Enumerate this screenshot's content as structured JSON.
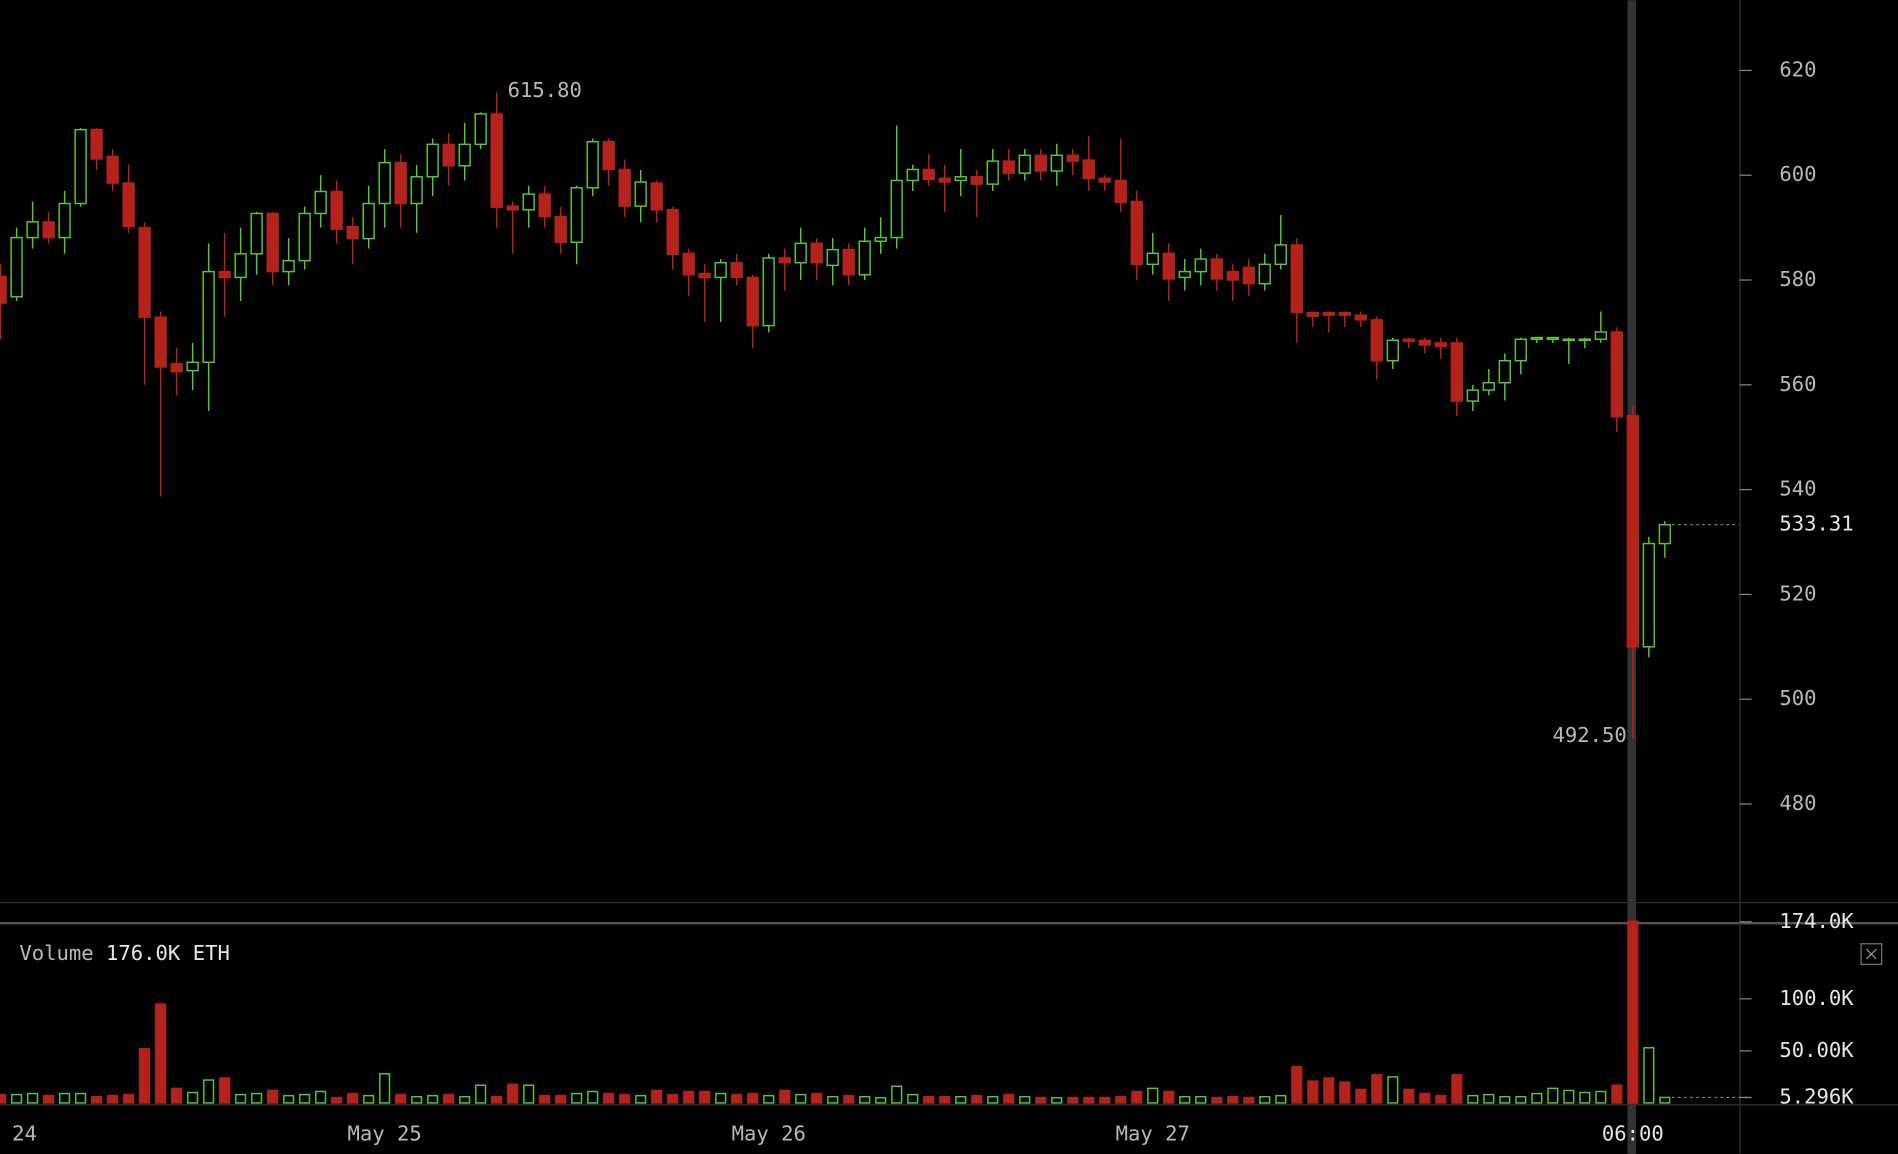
{
  "chart_data": {
    "type": "candlestick",
    "categories": [
      "24",
      null,
      null,
      null,
      null,
      null,
      null,
      null,
      null,
      null,
      null,
      null,
      null,
      null,
      null,
      null,
      null,
      null,
      null,
      null,
      null,
      null,
      null,
      null,
      "May 25",
      null,
      null,
      null,
      null,
      null,
      null,
      null,
      null,
      null,
      null,
      null,
      null,
      null,
      null,
      null,
      null,
      null,
      null,
      null,
      null,
      null,
      null,
      null,
      "May 26",
      null,
      null,
      null,
      null,
      null,
      null,
      null,
      null,
      null,
      null,
      null,
      null,
      null,
      null,
      null,
      null,
      null,
      null,
      null,
      null,
      null,
      null,
      null,
      "May 27",
      null,
      null,
      null,
      null,
      null,
      null,
      null,
      null,
      null,
      null,
      null,
      null,
      null,
      null,
      null,
      null,
      null,
      null,
      null,
      null,
      null,
      null,
      null,
      null,
      null,
      null,
      null,
      null,
      null,
      "06:00",
      null,
      null
    ],
    "open": [
      580.7,
      576.8,
      588.1,
      591.1,
      588.1,
      594.6,
      608.7,
      603.6,
      598.5,
      590,
      572.9,
      564,
      562.7,
      564.3,
      581.6,
      580.5,
      585,
      592.7,
      581.6,
      583.7,
      592.7,
      596.9,
      590.2,
      587.9,
      594.6,
      602.4,
      594.6,
      599.7,
      605.9,
      601.8,
      605.9,
      611.7,
      594.1,
      593.4,
      596.4,
      592.1,
      587.2,
      597.6,
      606.4,
      601.1,
      594.1,
      598.5,
      593.4,
      585.1,
      581.2,
      580.5,
      583.3,
      580.5,
      571.3,
      584.2,
      583.3,
      587,
      582.8,
      585.8,
      581,
      587.4,
      588.1,
      599,
      601.1,
      599.4,
      599,
      599.7,
      598.3,
      602.7,
      600.4,
      603.8,
      600.8,
      603.8,
      602.9,
      599.4,
      599,
      595,
      583,
      585.1,
      580.5,
      581.6,
      584,
      581.6,
      582.4,
      579.3,
      583,
      586.7,
      573.8,
      573.8,
      573.8,
      573.3,
      572.4,
      564.6,
      568.7,
      568.5,
      568,
      568,
      556.9,
      559,
      560.4,
      564.6,
      568.7,
      568.7,
      568.5,
      568.5,
      568.7,
      570.1,
      554.1,
      510,
      529.7
    ],
    "high": [
      583,
      590,
      595,
      593,
      597,
      609,
      609,
      605,
      602,
      591,
      574,
      567,
      568,
      587,
      589,
      590,
      593,
      593,
      588,
      594,
      600,
      599,
      592,
      598,
      605,
      604,
      602,
      607,
      608,
      610,
      612,
      615.8,
      595,
      598,
      598,
      594,
      598,
      607,
      607,
      603,
      601,
      599,
      594,
      586,
      583,
      584,
      585,
      581,
      585,
      586,
      590,
      588,
      588,
      587,
      590,
      592,
      609.5,
      602,
      604,
      602,
      605,
      601,
      605,
      605,
      605,
      605,
      606,
      605,
      607.5,
      600,
      607,
      597,
      589,
      587,
      584,
      586,
      585,
      583,
      584,
      585,
      592.4,
      588,
      574,
      574,
      574,
      574,
      573,
      569,
      569,
      569,
      569,
      569,
      560,
      563,
      566,
      569,
      569,
      569,
      569,
      569,
      574,
      571,
      556,
      531,
      534
    ],
    "low": [
      568.7,
      576,
      586,
      587,
      585,
      594,
      601,
      597,
      589,
      560,
      538.7,
      558,
      559,
      555,
      573,
      576,
      581,
      579,
      579,
      582,
      590,
      587,
      583,
      586,
      590,
      590,
      589,
      596,
      598,
      599,
      605,
      590,
      585,
      590,
      590,
      585,
      583,
      596,
      598,
      592,
      591,
      591,
      582,
      577,
      572,
      572,
      579,
      567,
      570,
      578,
      580,
      580,
      579,
      579,
      580,
      585,
      586,
      597,
      598,
      593,
      596,
      592,
      597,
      599,
      599,
      599,
      598,
      600,
      597,
      597,
      593,
      580,
      581,
      576,
      578,
      579,
      578,
      576,
      577,
      578,
      582,
      568,
      571,
      570,
      571,
      571,
      561,
      563,
      567,
      566,
      565,
      554,
      555,
      558,
      557,
      562,
      568,
      568,
      564,
      567,
      568,
      551,
      492.5,
      508,
      527
    ],
    "close": [
      575.6,
      588.1,
      591.1,
      588.1,
      594.6,
      608.7,
      603.1,
      598.5,
      590.2,
      572.9,
      563.4,
      562.5,
      564.3,
      581.6,
      580.5,
      585,
      592.7,
      581.6,
      583.7,
      592.7,
      596.9,
      589.7,
      587.9,
      594.6,
      602.4,
      594.6,
      599.7,
      605.9,
      601.8,
      605.9,
      611.7,
      593.9,
      593.4,
      596.4,
      592.1,
      587.2,
      597.6,
      606.4,
      601.1,
      594.1,
      598.7,
      593.4,
      584.9,
      581,
      580.5,
      583.3,
      580.5,
      571.3,
      584.2,
      583.3,
      587,
      583.3,
      585.8,
      581,
      587.4,
      588.1,
      599,
      601.1,
      599.2,
      598.7,
      599.7,
      598.3,
      602.7,
      600.4,
      603.8,
      600.8,
      603.8,
      602.7,
      599.4,
      598.7,
      594.8,
      583,
      585.1,
      580.2,
      581.6,
      584,
      580.2,
      580,
      579.3,
      583,
      586.7,
      573.8,
      573.1,
      573.3,
      573.3,
      572.4,
      564.6,
      568.5,
      568.3,
      567.6,
      567.3,
      556.9,
      559,
      560.4,
      564.6,
      568.7,
      569,
      569,
      568.7,
      568.7,
      570.1,
      553.9,
      510,
      529.7,
      533.31
    ],
    "volume": [
      8000,
      8000,
      9000,
      7000,
      9000,
      9000,
      6000,
      7000,
      8000,
      52000,
      95000,
      14000,
      10000,
      22000,
      24000,
      8000,
      9000,
      12000,
      7000,
      8000,
      11000,
      5000,
      9000,
      7000,
      28000,
      8000,
      6000,
      7000,
      8000,
      6000,
      17000,
      6000,
      18000,
      17000,
      7000,
      7000,
      9000,
      11000,
      9000,
      8000,
      7000,
      12000,
      8000,
      11000,
      11000,
      9000,
      8000,
      9000,
      7000,
      12000,
      8000,
      9000,
      6000,
      7000,
      6000,
      5000,
      16000,
      8000,
      6000,
      6000,
      6000,
      7000,
      6000,
      8000,
      6000,
      5000,
      5000,
      5000,
      5000,
      5000,
      6000,
      11000,
      14000,
      11000,
      6000,
      6000,
      5000,
      6000,
      5000,
      6000,
      7000,
      35000,
      21000,
      24000,
      20000,
      13000,
      27000,
      25000,
      13000,
      9000,
      7000,
      27000,
      7000,
      8000,
      6000,
      6000,
      9000,
      14000,
      12000,
      10000,
      11000,
      17000,
      176000,
      53000,
      5296
    ],
    "up_color": "#57c934",
    "down_color": "#b3231b",
    "ylim": [
      461.3,
      633.4
    ],
    "yticks": [
      480,
      500,
      520,
      540,
      560,
      580,
      600,
      620
    ],
    "volume_ylim": [
      0,
      174400
    ],
    "volume_yticks": [
      {
        "value": 5296,
        "label": "5.296K"
      },
      {
        "value": 50000,
        "label": "50.00K"
      },
      {
        "value": 100000,
        "label": "100.0K"
      },
      {
        "value": 174000,
        "label": "174.0K"
      }
    ],
    "high_label": "615.80",
    "low_label": "492.50",
    "last_label": "533.31",
    "volume_title": "Volume",
    "volume_value_label": "176.0K",
    "volume_unit": "ETH"
  }
}
